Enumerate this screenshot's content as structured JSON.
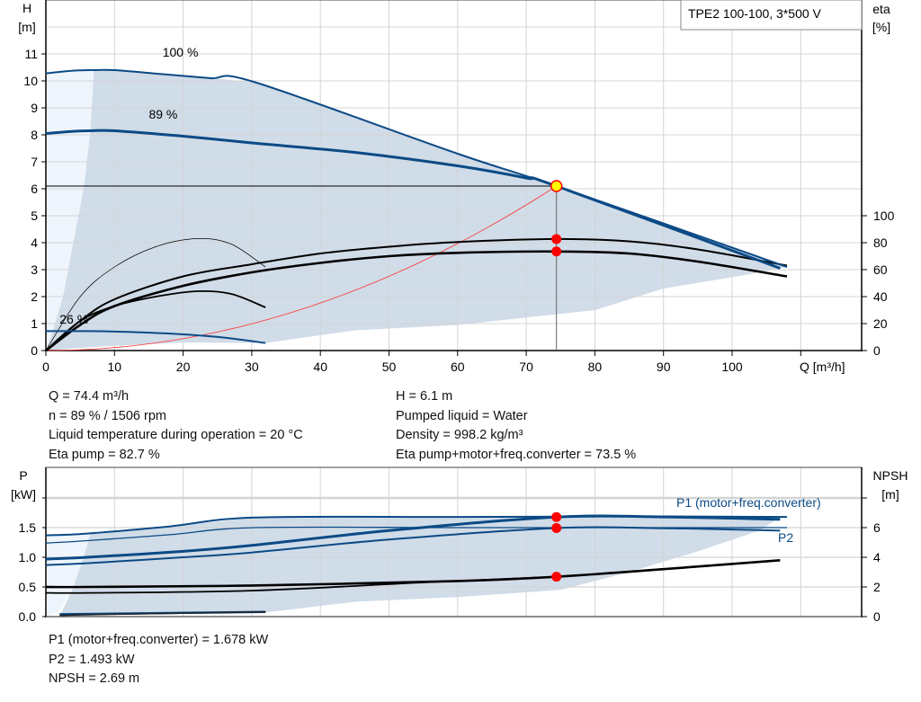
{
  "model_label": "TPE2 100-100, 3*500 V",
  "colors": {
    "curve_blue": "#0b4a85",
    "area_fill": "#d0dce8",
    "area_light": "#eef5fc",
    "grid": "#d4d4d4",
    "duty_point": "#ff0000",
    "duty_point_main": "#ffff00",
    "system_curve": "#ff3030"
  },
  "info_top": {
    "left": [
      "Q = 74.4 m³/h",
      "n = 89 % / 1506 rpm",
      "Liquid temperature during operation = 20 °C",
      "Eta pump = 82.7 %"
    ],
    "right": [
      "H = 6.1 m",
      "Pumped liquid = Water",
      "Density = 998.2 kg/m³",
      "Eta pump+motor+freq.converter = 73.5 %"
    ]
  },
  "info_bottom": [
    "P1 (motor+freq.converter) = 1.678 kW",
    "P2 = 1.493 kW",
    "NPSH = 2.69 m"
  ],
  "chart_data": [
    {
      "type": "line",
      "name": "head-efficiency",
      "ylabel": [
        "H",
        "[m]"
      ],
      "y2label": [
        "eta",
        "[%]"
      ],
      "xlabel": "Q [m³/h]",
      "xticks": [
        0,
        10,
        20,
        30,
        40,
        50,
        60,
        70,
        80,
        90,
        100
      ],
      "yticks": [
        0,
        1,
        2,
        3,
        4,
        5,
        6,
        7,
        8,
        9,
        10,
        11
      ],
      "y2ticks": [
        0,
        20,
        40,
        60,
        80,
        100
      ],
      "xlim": [
        0,
        110
      ],
      "ylim": [
        0,
        13
      ],
      "y2lim": [
        0,
        260
      ],
      "grid": true,
      "speed_labels": [
        {
          "text": "100 %",
          "q": 17,
          "h": 10.9
        },
        {
          "text": "89 %",
          "q": 15,
          "h": 8.6
        },
        {
          "text": "26 %",
          "q": 2,
          "h": 1.0
        }
      ],
      "head_curves": [
        {
          "speed": "100 %",
          "points": [
            [
              0,
              10.28
            ],
            [
              4,
              10.38
            ],
            [
              7,
              10.4
            ],
            [
              10,
              10.4
            ],
            [
              17,
              10.25
            ],
            [
              24,
              10.1
            ],
            [
              30.5,
              9.95
            ],
            [
              60,
              7.3
            ],
            [
              74.4,
              6.1
            ],
            [
              108,
              3.1
            ]
          ]
        },
        {
          "speed": "89 %",
          "points": [
            [
              0,
              8.05
            ],
            [
              4,
              8.13
            ],
            [
              6.5,
              8.15
            ],
            [
              10,
              8.15
            ],
            [
              20,
              7.95
            ],
            [
              30,
              7.7
            ],
            [
              45,
              7.35
            ],
            [
              60,
              6.85
            ],
            [
              70,
              6.4
            ],
            [
              74.4,
              6.1
            ],
            [
              107,
              3.05
            ]
          ]
        },
        {
          "speed": "26 %",
          "points": [
            [
              0,
              0.72
            ],
            [
              6,
              0.72
            ],
            [
              12,
              0.69
            ],
            [
              20,
              0.6
            ],
            [
              26,
              0.48
            ],
            [
              32,
              0.28
            ]
          ]
        }
      ],
      "eta_curves": [
        {
          "name": "eta pump",
          "points": [
            [
              0,
              0
            ],
            [
              5,
              22
            ],
            [
              10,
              38
            ],
            [
              20,
              55
            ],
            [
              30,
              64
            ],
            [
              40,
              72
            ],
            [
              50,
              77
            ],
            [
              60,
              80.5
            ],
            [
              74.4,
              82.7
            ],
            [
              85,
              81
            ],
            [
              95,
              75
            ],
            [
              108,
              63
            ]
          ]
        },
        {
          "name": "eta pump+motor+freq.converter",
          "points": [
            [
              0,
              0
            ],
            [
              5,
              19
            ],
            [
              10,
              33
            ],
            [
              20,
              48
            ],
            [
              30,
              58
            ],
            [
              40,
              65
            ],
            [
              50,
              70
            ],
            [
              60,
              72.5
            ],
            [
              74.4,
              73.5
            ],
            [
              85,
              72
            ],
            [
              95,
              66
            ],
            [
              108,
              55
            ]
          ]
        },
        {
          "name": "eta pump 26 %",
          "points": [
            [
              0,
              0
            ],
            [
              5,
              40
            ],
            [
              10,
              62
            ],
            [
              16,
              77
            ],
            [
              22,
              83
            ],
            [
              27,
              79
            ],
            [
              32,
              62
            ]
          ]
        },
        {
          "name": "eta total 26 %",
          "points": [
            [
              0,
              0
            ],
            [
              5,
              22
            ],
            [
              10,
              33
            ],
            [
              16,
              40
            ],
            [
              22,
              44
            ],
            [
              27,
              42
            ],
            [
              32,
              32
            ]
          ]
        }
      ],
      "system_curve": {
        "q_max": 74.4,
        "h_at_max": 6.1
      },
      "duty_point": {
        "q": 74.4,
        "h": 6.1,
        "eta_pump": 82.7,
        "eta_total": 73.5
      }
    },
    {
      "type": "line",
      "name": "power-npsh",
      "ylabel": [
        "P",
        "[kW]"
      ],
      "y2label": [
        "NPSH",
        "[m]"
      ],
      "yticks": [
        0.0,
        0.5,
        1.0,
        1.5
      ],
      "ytick_labels": [
        "0.0",
        "0.5",
        "1.0",
        "1.5"
      ],
      "y2ticks": [
        0,
        2,
        4,
        6,
        8
      ],
      "y2tick_labels": [
        "0",
        "2",
        "4",
        "6",
        ""
      ],
      "ylim": [
        0,
        2.5
      ],
      "y2lim": [
        0,
        10
      ],
      "legend_labels": {
        "p1": "P1 (motor+freq.converter)",
        "p2": "P2"
      },
      "power_curves": [
        {
          "name": "P1 100 %",
          "points": [
            [
              0,
              1.37
            ],
            [
              6,
              1.4
            ],
            [
              18,
              1.52
            ],
            [
              30.5,
              1.67
            ],
            [
              60,
              1.68
            ],
            [
              90,
              1.69
            ],
            [
              108,
              1.68
            ]
          ]
        },
        {
          "name": "P2 100 %",
          "points": [
            [
              0,
              1.24
            ],
            [
              6,
              1.28
            ],
            [
              18,
              1.38
            ],
            [
              30.5,
              1.5
            ],
            [
              60,
              1.5
            ],
            [
              90,
              1.5
            ],
            [
              108,
              1.5
            ]
          ]
        },
        {
          "name": "P1 89 %",
          "points": [
            [
              0,
              0.97
            ],
            [
              6,
              1.0
            ],
            [
              20,
              1.1
            ],
            [
              30,
              1.2
            ],
            [
              50,
              1.45
            ],
            [
              74.4,
              1.678
            ],
            [
              90,
              1.68
            ],
            [
              107,
              1.64
            ]
          ]
        },
        {
          "name": "P2 89 %",
          "points": [
            [
              0,
              0.87
            ],
            [
              6,
              0.9
            ],
            [
              20,
              1.0
            ],
            [
              30,
              1.08
            ],
            [
              50,
              1.3
            ],
            [
              74.4,
              1.493
            ],
            [
              90,
              1.49
            ],
            [
              107,
              1.45
            ]
          ]
        },
        {
          "name": "P1 26 %",
          "points": [
            [
              2,
              0.04
            ],
            [
              10,
              0.05
            ],
            [
              32,
              0.08
            ]
          ]
        }
      ],
      "npsh_curves": [
        {
          "name": "NPSH 100 %",
          "points": [
            [
              0,
              2.0
            ],
            [
              6,
              2.0
            ],
            [
              30,
              2.1
            ],
            [
              60,
              2.4
            ],
            [
              74.4,
              2.69
            ],
            [
              90,
              3.2
            ],
            [
              107,
              3.8
            ]
          ]
        },
        {
          "name": "NPSH 89 %",
          "points": [
            [
              0,
              1.6
            ],
            [
              6,
              1.6
            ],
            [
              30,
              1.75
            ],
            [
              55,
              2.3
            ],
            [
              74.4,
              2.69
            ]
          ]
        }
      ],
      "duty_point": {
        "q": 74.4,
        "p1": 1.678,
        "p2": 1.493,
        "npsh": 2.69
      }
    }
  ]
}
